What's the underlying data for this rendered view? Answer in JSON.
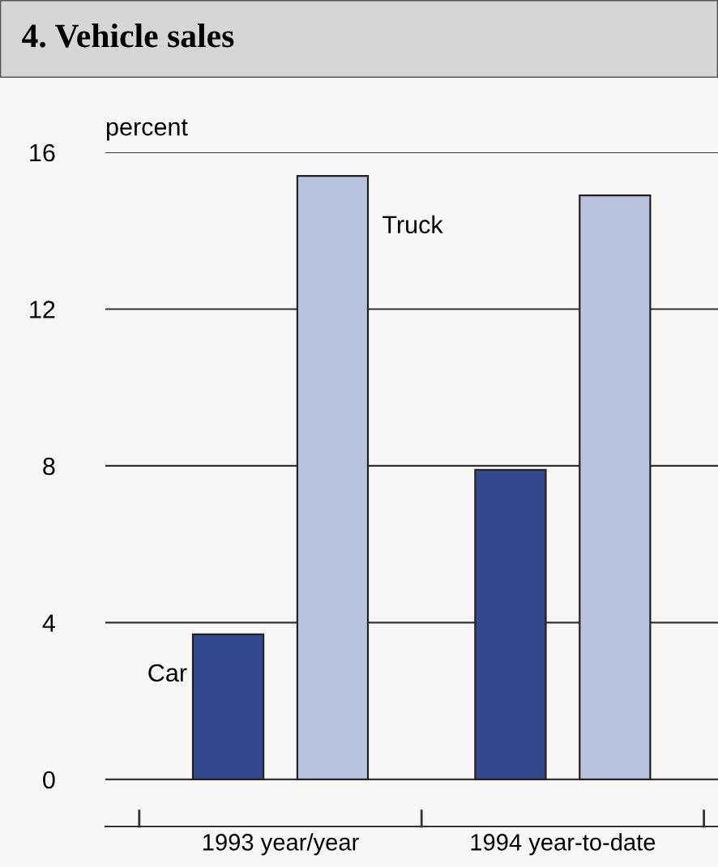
{
  "chart_data": {
    "type": "bar",
    "title": "4. Vehicle sales",
    "ylabel": "percent",
    "categories": [
      "1993 year/year",
      "1994 year-to-date"
    ],
    "series": [
      {
        "name": "Car",
        "color": "#34488f",
        "values": [
          3.7,
          7.9
        ]
      },
      {
        "name": "Truck",
        "color": "#b9c3de",
        "values": [
          15.4,
          14.9
        ]
      }
    ],
    "ylim": [
      -1.2,
      16
    ],
    "yticks": [
      0,
      4,
      8,
      12,
      16
    ],
    "grid": "y",
    "legend": false
  }
}
